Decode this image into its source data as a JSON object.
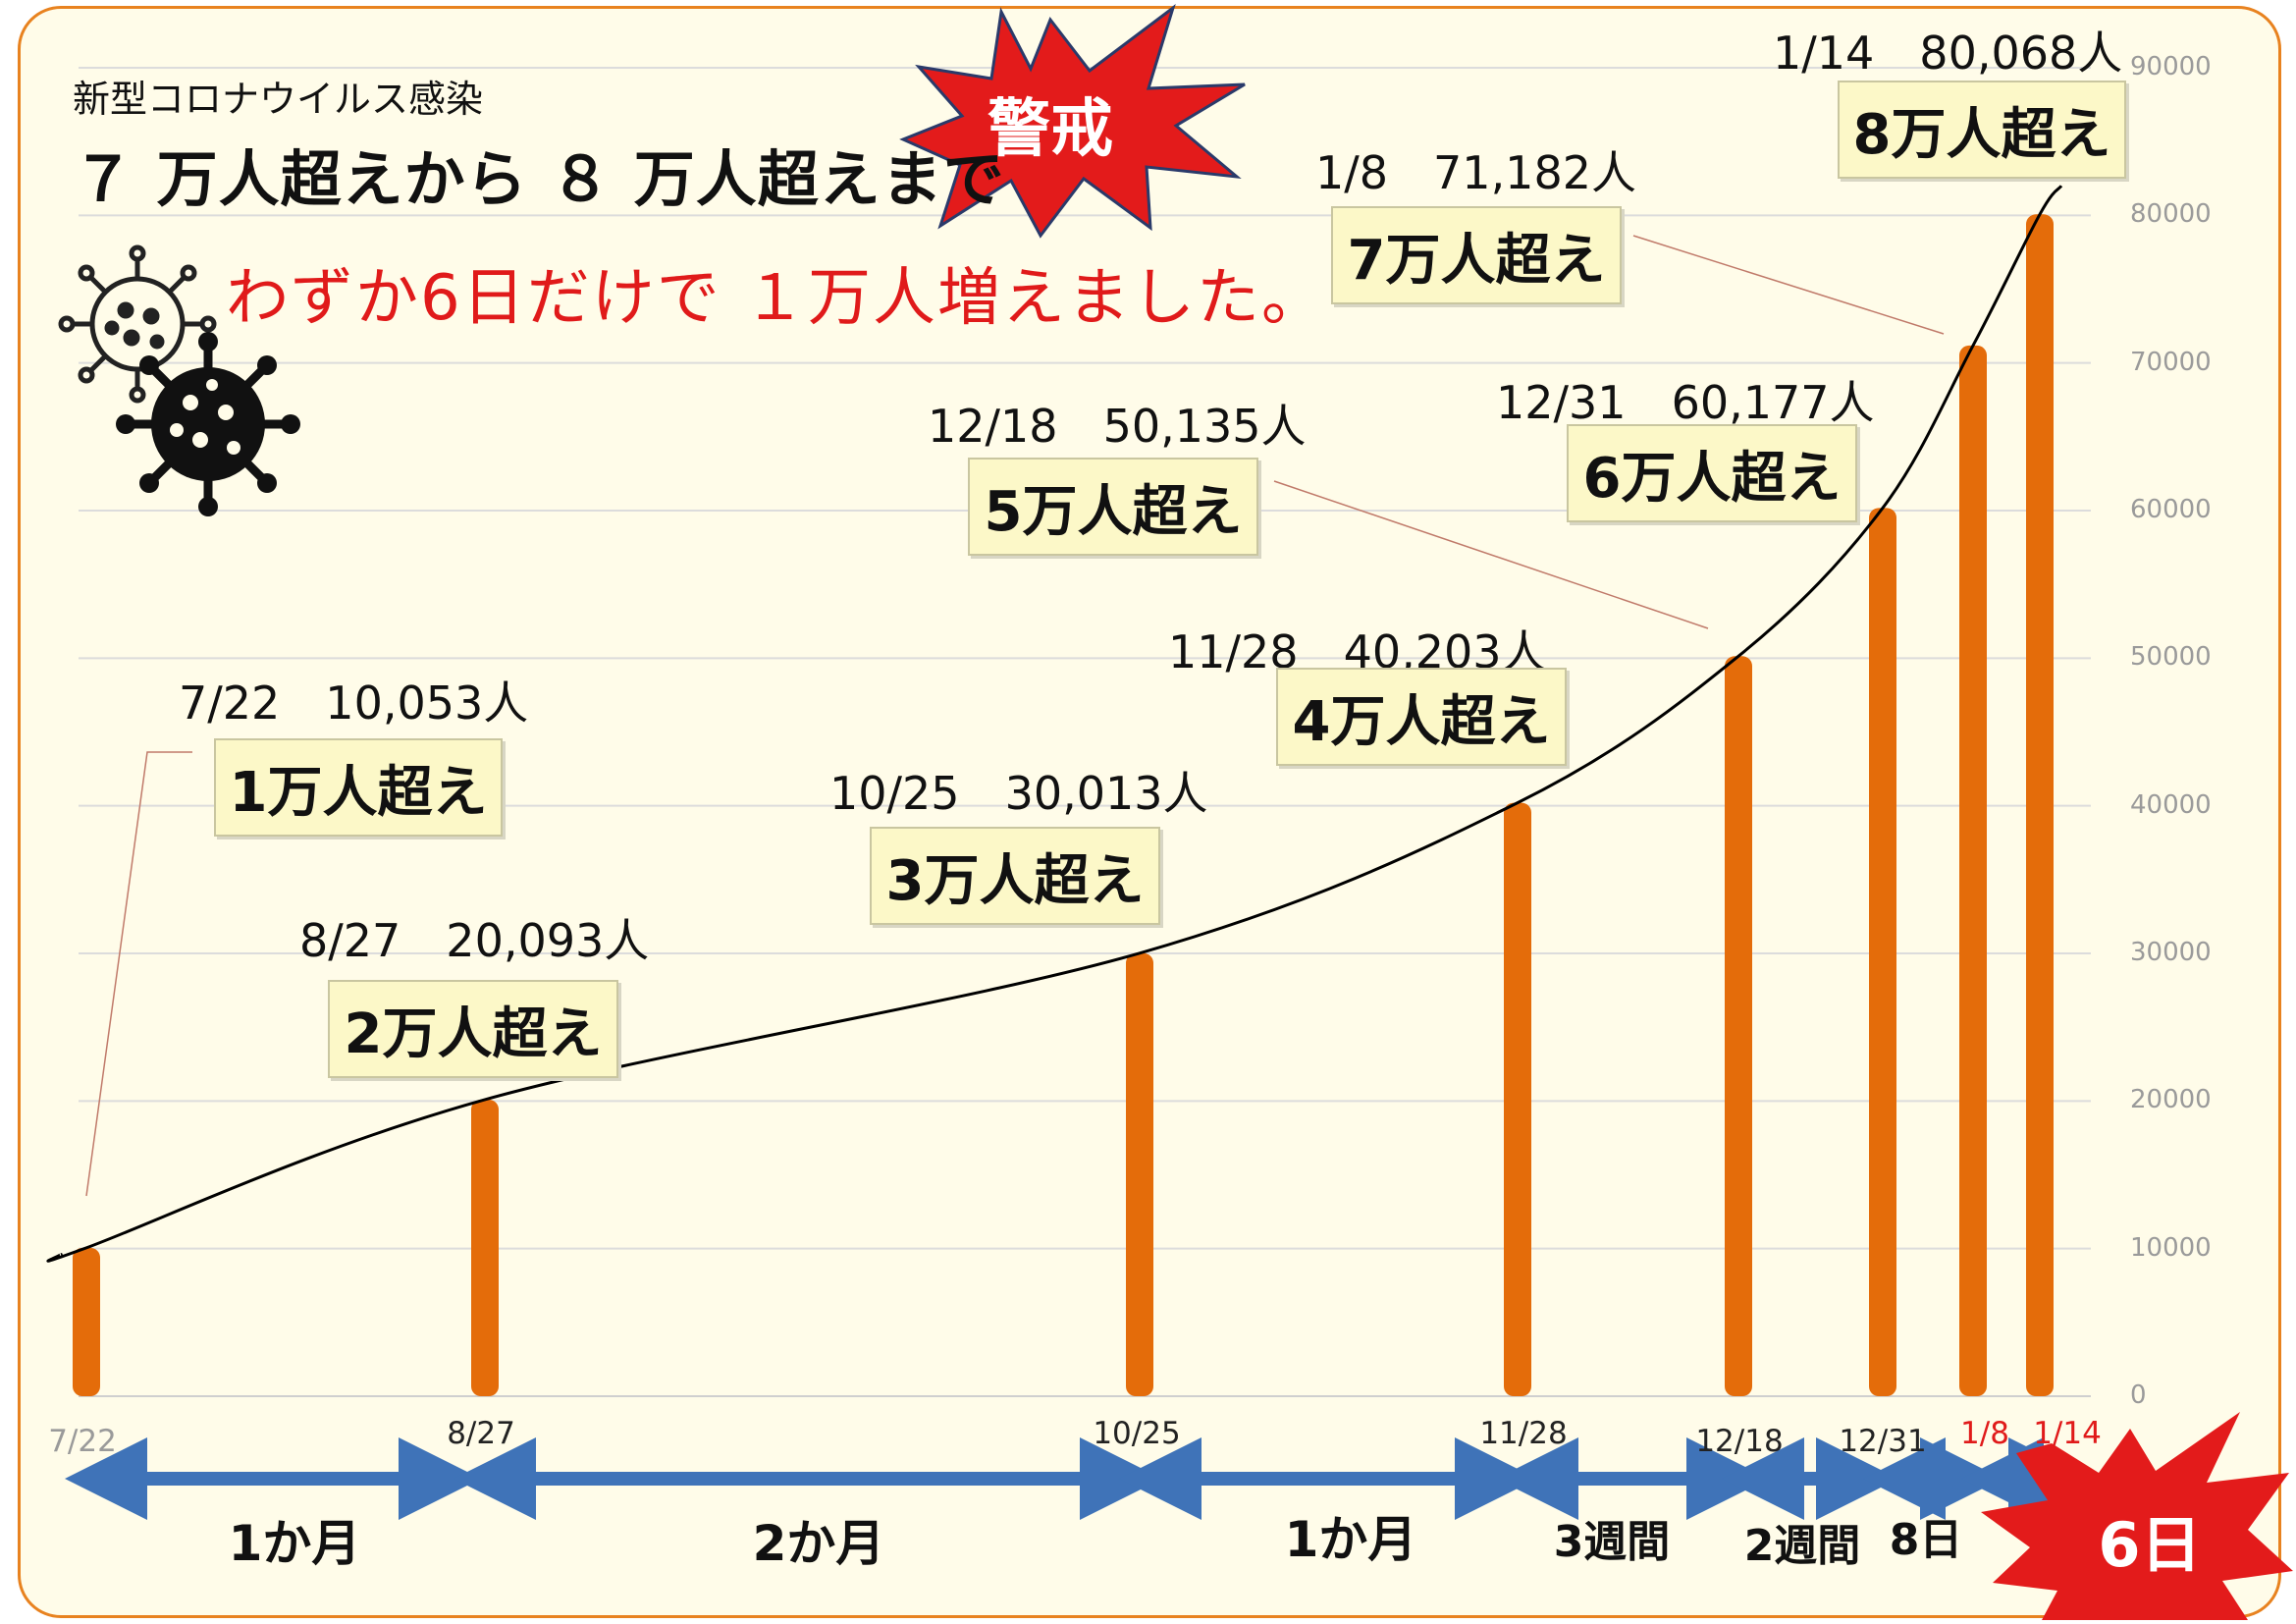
{
  "header": {
    "subtitle": "新型コロナウイルス感染",
    "title": "７ 万人超えから ８ 万人超えまで",
    "highlight": "わずか6日だけで １万人増えました。"
  },
  "alert_badge": {
    "label": "警戒",
    "color": "#e31b1b"
  },
  "days_badge": {
    "label": "6日",
    "color": "#e31b1b"
  },
  "icons": [
    "virus-outline-icon",
    "virus-solid-icon"
  ],
  "colors": {
    "bar": "#e46c0a",
    "line": "#000000",
    "highlight_text": "#e01a1a",
    "arrow": "#3f73b8"
  },
  "chart_data": {
    "type": "bar",
    "categories": [
      "7/22",
      "8/27",
      "10/25",
      "11/28",
      "12/18",
      "12/31",
      "1/8",
      "1/14"
    ],
    "values": [
      10053,
      20093,
      30013,
      40203,
      50135,
      60177,
      71182,
      80068
    ],
    "value_labels": [
      "10,053人",
      "20,093人",
      "30,013人",
      "40,203人",
      "50,135人",
      "60,177人",
      "71,182人",
      "80,068人"
    ],
    "milestones": [
      "1万人超え",
      "2万人超え",
      "3万人超え",
      "4万人超え",
      "5万人超え",
      "6万人超え",
      "7万人超え",
      "8万人超え"
    ],
    "highlight_categories": [
      "1/8",
      "1/14"
    ],
    "ylim": [
      0,
      90000
    ],
    "yticks": [
      0,
      10000,
      20000,
      30000,
      40000,
      50000,
      60000,
      70000,
      80000,
      90000
    ],
    "grid": true,
    "cumulative_line": true,
    "intervals": [
      {
        "from": "7/22",
        "to": "8/27",
        "label": "1か月"
      },
      {
        "from": "8/27",
        "to": "10/25",
        "label": "2か月"
      },
      {
        "from": "10/25",
        "to": "11/28",
        "label": "1か月"
      },
      {
        "from": "11/28",
        "to": "12/18",
        "label": "3週間"
      },
      {
        "from": "12/18",
        "to": "12/31",
        "label": "2週間"
      },
      {
        "from": "12/31",
        "to": "1/8",
        "label": "8日"
      },
      {
        "from": "1/8",
        "to": "1/14",
        "label": "6日"
      }
    ]
  }
}
